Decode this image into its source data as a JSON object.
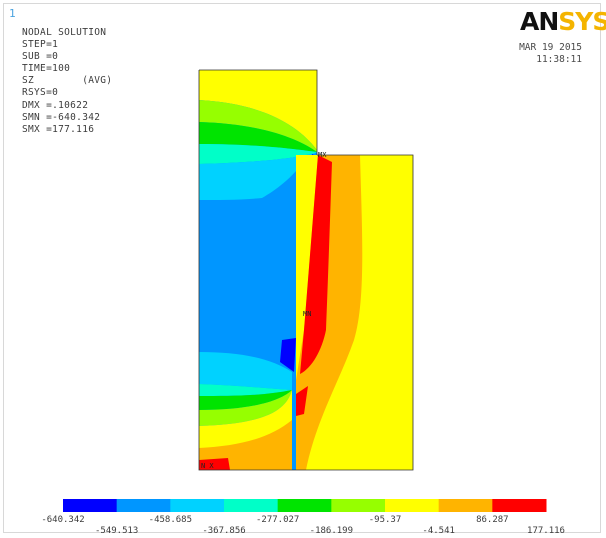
{
  "window_number": "1",
  "solution": {
    "title": "NODAL SOLUTION",
    "lines": [
      "STEP=1",
      "SUB =0",
      "TIME=100",
      "SZ        (AVG)",
      "RSYS=0",
      "DMX =.10622",
      "SMN =-640.342",
      "SMX =177.116"
    ]
  },
  "logo": {
    "text_main": "AN",
    "text_accent": "SYS"
  },
  "timestamp": {
    "date": "MAR 19 2015",
    "time": "11:38:11"
  },
  "colors": {
    "band_1": "#0000ff",
    "band_2": "#0096ff",
    "band_3": "#00d2ff",
    "band_4": "#00ffc8",
    "band_5": "#00e400",
    "band_6": "#96ff00",
    "band_7": "#ffff00",
    "band_8": "#ffb400",
    "band_9": "#ff0000",
    "outline": "#333333"
  },
  "mesh_markers": {
    "top_marker": "MX",
    "mid_marker": "MN",
    "bottom_marker": "N  X"
  },
  "colorbar": {
    "values": [
      "-640.342",
      "-549.513",
      "-458.685",
      "-367.856",
      "-277.027",
      "-186.199",
      "-95.37",
      "-4.541",
      "86.287",
      "177.116"
    ]
  }
}
